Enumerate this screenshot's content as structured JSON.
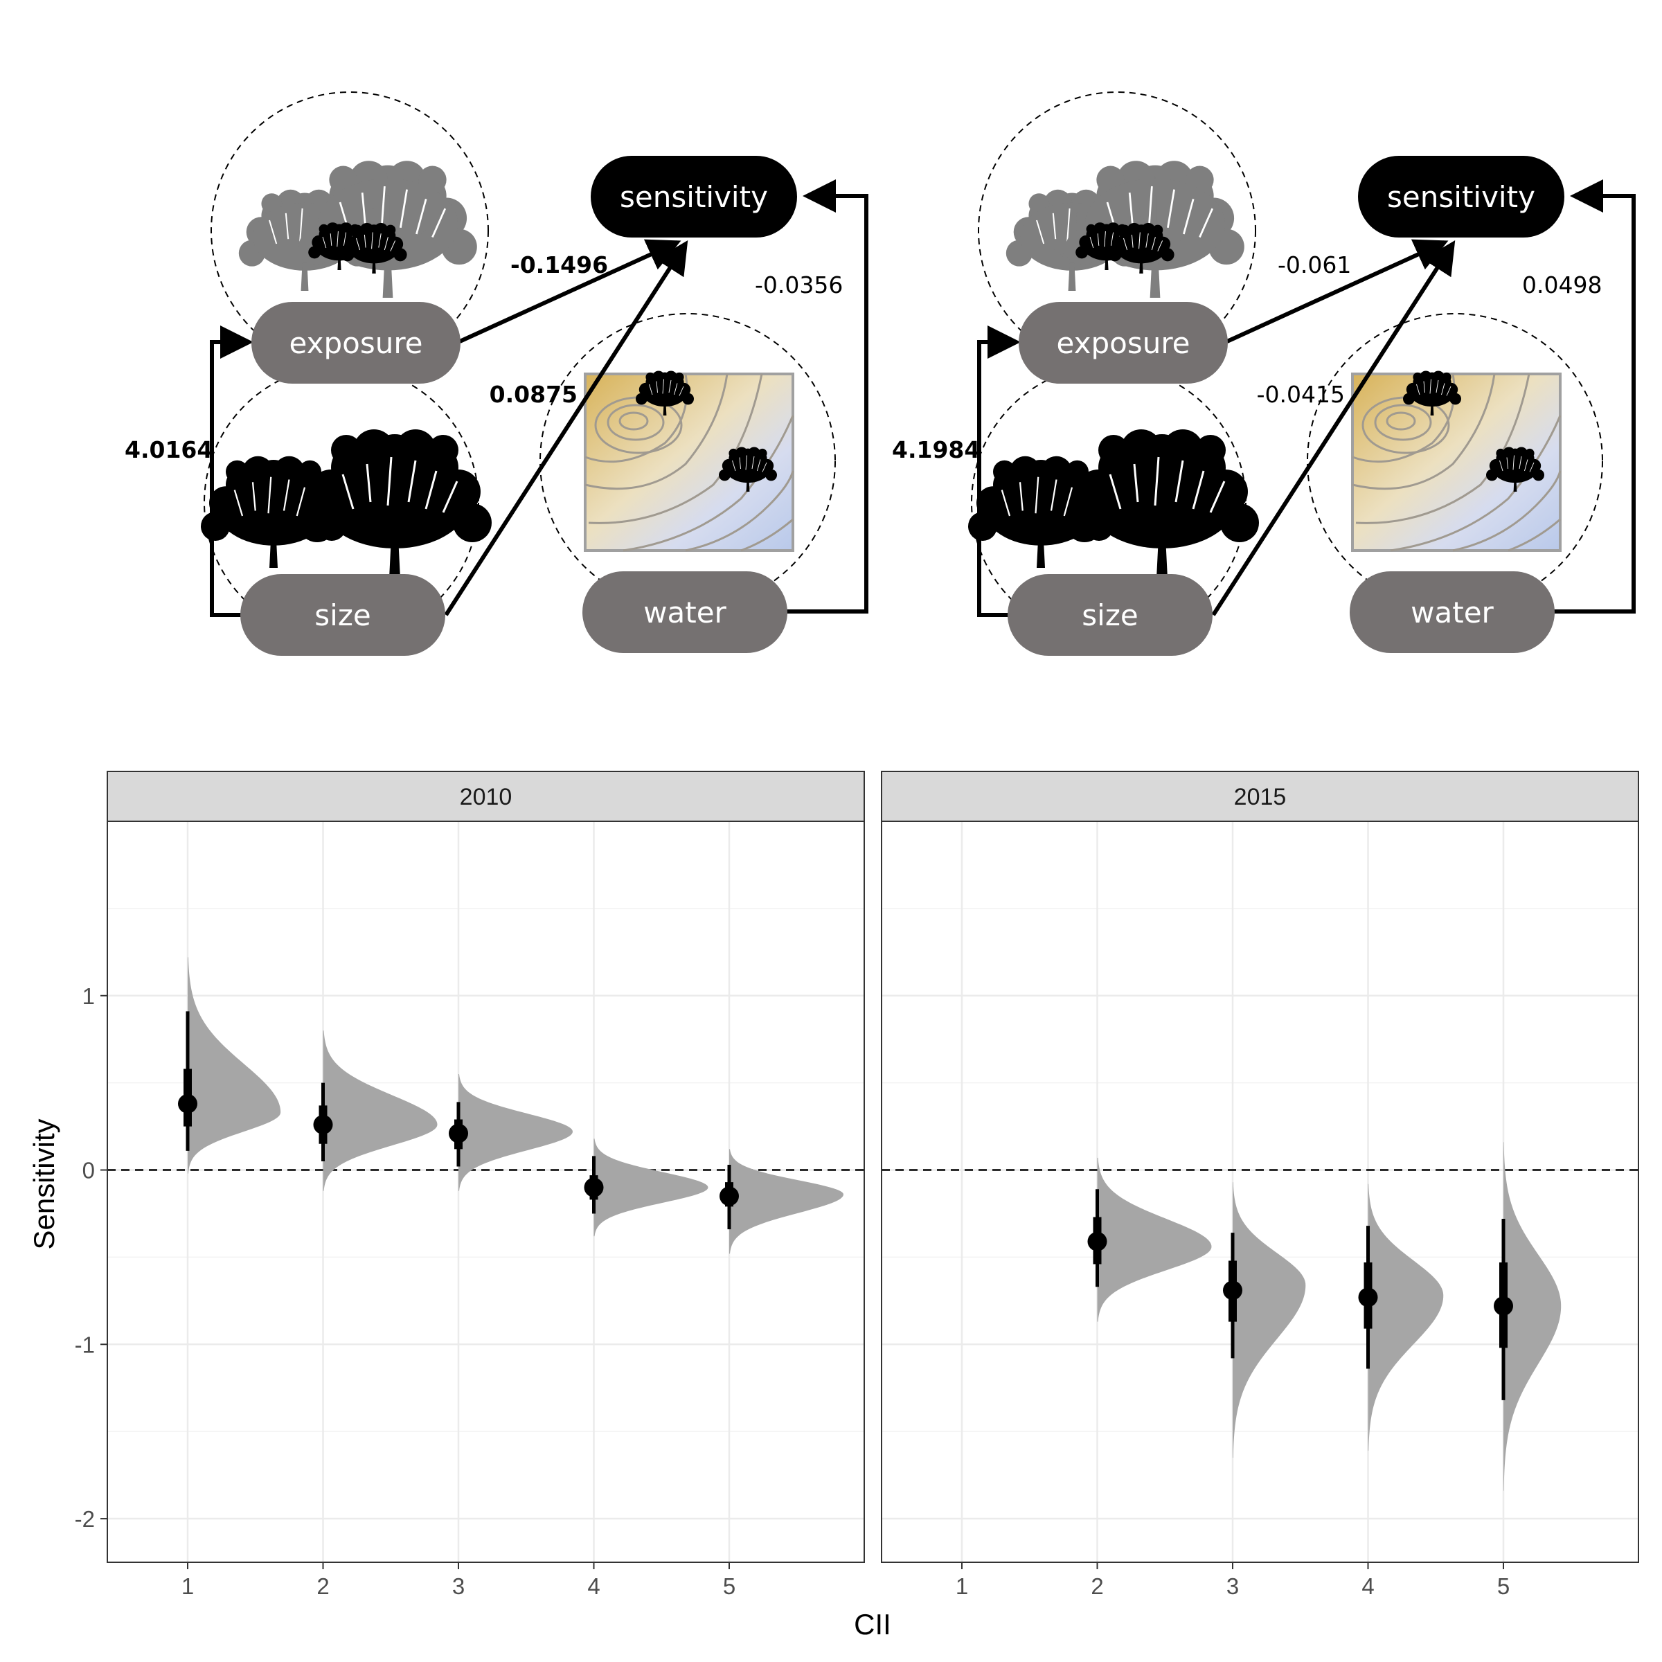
{
  "diagrams": [
    {
      "panel": "2010",
      "nodes": {
        "sensitivity": "sensitivity",
        "exposure": "exposure",
        "size": "size",
        "water": "water"
      },
      "edges": [
        {
          "from": "size",
          "to": "exposure",
          "coef": "4.0164",
          "bold": true
        },
        {
          "from": "exposure",
          "to": "sensitivity",
          "coef": "-0.1496",
          "bold": true
        },
        {
          "from": "size",
          "to": "sensitivity",
          "coef": "0.0875",
          "bold": true
        },
        {
          "from": "water",
          "to": "sensitivity",
          "coef": "-0.0356",
          "bold": false
        }
      ]
    },
    {
      "panel": "2015",
      "nodes": {
        "sensitivity": "sensitivity",
        "exposure": "exposure",
        "size": "size",
        "water": "water"
      },
      "edges": [
        {
          "from": "size",
          "to": "exposure",
          "coef": "4.1984",
          "bold": true
        },
        {
          "from": "exposure",
          "to": "sensitivity",
          "coef": "-0.061",
          "bold": false
        },
        {
          "from": "size",
          "to": "sensitivity",
          "coef": "-0.0415",
          "bold": false
        },
        {
          "from": "water",
          "to": "sensitivity",
          "coef": "0.0498",
          "bold": false
        }
      ]
    }
  ],
  "chart_data": {
    "type": "halfeye",
    "xlabel": "CII",
    "ylabel": "Sensitivity",
    "x_ticks": [
      "1",
      "2",
      "3",
      "4",
      "5"
    ],
    "y_ticks": [
      "1",
      "0",
      "-1",
      "-2"
    ],
    "ylim": [
      -2.25,
      2.0
    ],
    "reference_line": 0,
    "grid": true,
    "panels": [
      {
        "label": "2010",
        "points": [
          {
            "x": 1,
            "mean": 0.38,
            "q66": [
              0.25,
              0.58
            ],
            "q95": [
              0.11,
              0.91
            ],
            "range": [
              -0.02,
              1.22
            ],
            "sd": 0.18,
            "mode": 0.33
          },
          {
            "x": 2,
            "mean": 0.26,
            "q66": [
              0.15,
              0.37
            ],
            "q95": [
              0.05,
              0.5
            ],
            "range": [
              -0.12,
              0.8
            ],
            "sd": 0.12,
            "mode": 0.26
          },
          {
            "x": 3,
            "mean": 0.21,
            "q66": [
              0.12,
              0.29
            ],
            "q95": [
              0.02,
              0.39
            ],
            "range": [
              -0.12,
              0.55
            ],
            "sd": 0.1,
            "mode": 0.22
          },
          {
            "x": 4,
            "mean": -0.1,
            "q66": [
              -0.17,
              -0.03
            ],
            "q95": [
              -0.25,
              0.08
            ],
            "range": [
              -0.38,
              0.18
            ],
            "sd": 0.09,
            "mode": -0.1
          },
          {
            "x": 5,
            "mean": -0.15,
            "q66": [
              -0.21,
              -0.07
            ],
            "q95": [
              -0.34,
              0.03
            ],
            "range": [
              -0.48,
              0.12
            ],
            "sd": 0.09,
            "mode": -0.14
          }
        ]
      },
      {
        "label": "2015",
        "points": [
          {
            "x": 2,
            "mean": -0.41,
            "q66": [
              -0.54,
              -0.27
            ],
            "q95": [
              -0.67,
              -0.11
            ],
            "range": [
              -0.87,
              0.07
            ],
            "sd": 0.12,
            "mode": -0.44
          },
          {
            "x": 3,
            "mean": -0.69,
            "q66": [
              -0.87,
              -0.52
            ],
            "q95": [
              -1.08,
              -0.36
            ],
            "range": [
              -1.65,
              -0.07
            ],
            "sd": 0.16,
            "mode": -0.66
          },
          {
            "x": 4,
            "mean": -0.73,
            "q66": [
              -0.91,
              -0.53
            ],
            "q95": [
              -1.14,
              -0.32
            ],
            "range": [
              -1.61,
              -0.08
            ],
            "sd": 0.18,
            "mode": -0.72
          },
          {
            "x": 5,
            "mean": -0.78,
            "q66": [
              -1.02,
              -0.53
            ],
            "q95": [
              -1.32,
              -0.28
            ],
            "range": [
              -1.84,
              0.16
            ],
            "sd": 0.22,
            "mode": -0.78
          }
        ]
      }
    ]
  },
  "colors": {
    "node_dark": "#000000",
    "node_grey": "#757171",
    "tree_dark": "#000000",
    "tree_grey": "#7f7f7f",
    "density": "#a6a6a6",
    "strip_fill": "#d9d9d9",
    "grid": "#ebebeb",
    "map_warm": "#d8b86a",
    "map_cool": "#b8c8e8",
    "contour": "#a09a90"
  }
}
